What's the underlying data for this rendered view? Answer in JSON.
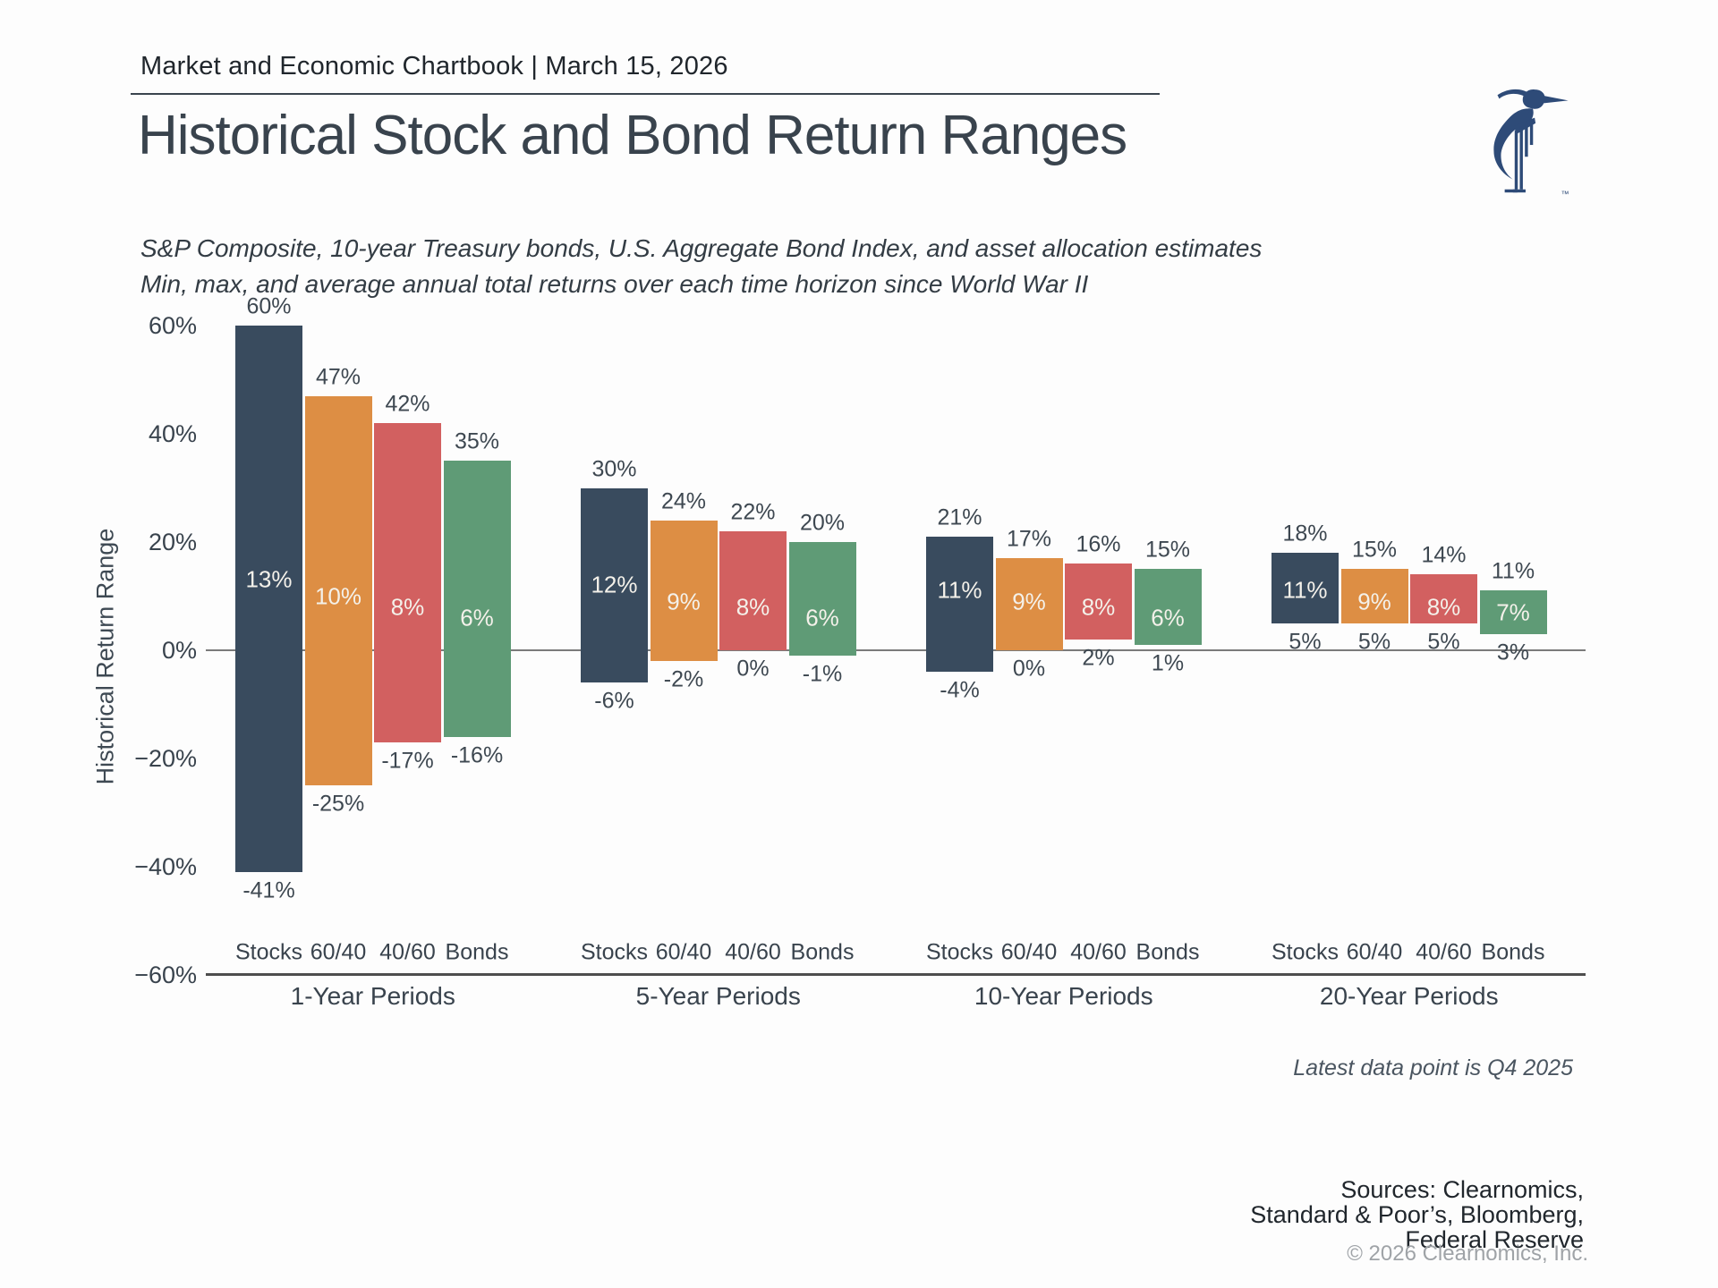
{
  "header": {
    "text": "Market and Economic Chartbook | March 15, 2026"
  },
  "title": "Historical Stock and Bond Return Ranges",
  "subtitle_line1": "S&P Composite, 10-year Treasury bonds, U.S. Aggregate Bond Index, and asset allocation estimates",
  "subtitle_line2": "Min, max, and average annual total returns over each time horizon since World War II",
  "logo": {
    "name": "clearnomics-heron-logo",
    "trademark": "™",
    "color": "#2e4b78"
  },
  "footnote": "Latest data point is Q4 2025",
  "sources": {
    "line1": "Sources: Clearnomics,",
    "line2": "Standard & Poor’s, Bloomberg,",
    "line3": "Federal Reserve"
  },
  "copyright": "© 2026 Clearnomics, Inc.",
  "chart_data": {
    "type": "bar",
    "subtype": "floating-range-bars",
    "title": "Historical Stock and Bond Return Ranges",
    "xlabel": "",
    "ylabel": "Historical Return Range",
    "ylim": [
      -60,
      60
    ],
    "grid": false,
    "legend_position": "none",
    "y_ticks": [
      {
        "value": 60,
        "label": "60%"
      },
      {
        "value": 40,
        "label": "40%"
      },
      {
        "value": 20,
        "label": "20%"
      },
      {
        "value": 0,
        "label": "0%"
      },
      {
        "value": -20,
        "label": "−20%"
      },
      {
        "value": -40,
        "label": "−40%"
      },
      {
        "value": -60,
        "label": "−60%"
      }
    ],
    "categories": [
      "Stocks",
      "60/40",
      "40/60",
      "Bonds"
    ],
    "colors": {
      "Stocks": "#394b5e",
      "60/40": "#dd8e44",
      "40/60": "#d26060",
      "Bonds": "#5f9b76"
    },
    "value_unit": "%",
    "groups": [
      {
        "label": "1-Year Periods",
        "bars": [
          {
            "asset": "Stocks",
            "max": 60,
            "avg": 13,
            "min": -41
          },
          {
            "asset": "60/40",
            "max": 47,
            "avg": 10,
            "min": -25
          },
          {
            "asset": "40/60",
            "max": 42,
            "avg": 8,
            "min": -17
          },
          {
            "asset": "Bonds",
            "max": 35,
            "avg": 6,
            "min": -16
          }
        ]
      },
      {
        "label": "5-Year Periods",
        "bars": [
          {
            "asset": "Stocks",
            "max": 30,
            "avg": 12,
            "min": -6
          },
          {
            "asset": "60/40",
            "max": 24,
            "avg": 9,
            "min": -2
          },
          {
            "asset": "40/60",
            "max": 22,
            "avg": 8,
            "min": 0
          },
          {
            "asset": "Bonds",
            "max": 20,
            "avg": 6,
            "min": -1
          }
        ]
      },
      {
        "label": "10-Year Periods",
        "bars": [
          {
            "asset": "Stocks",
            "max": 21,
            "avg": 11,
            "min": -4
          },
          {
            "asset": "60/40",
            "max": 17,
            "avg": 9,
            "min": 0
          },
          {
            "asset": "40/60",
            "max": 16,
            "avg": 8,
            "min": 2
          },
          {
            "asset": "Bonds",
            "max": 15,
            "avg": 6,
            "min": 1
          }
        ]
      },
      {
        "label": "20-Year Periods",
        "bars": [
          {
            "asset": "Stocks",
            "max": 18,
            "avg": 11,
            "min": 5
          },
          {
            "asset": "60/40",
            "max": 15,
            "avg": 9,
            "min": 5
          },
          {
            "asset": "40/60",
            "max": 14,
            "avg": 8,
            "min": 5
          },
          {
            "asset": "Bonds",
            "max": 11,
            "avg": 7,
            "min": 3
          }
        ]
      }
    ]
  }
}
